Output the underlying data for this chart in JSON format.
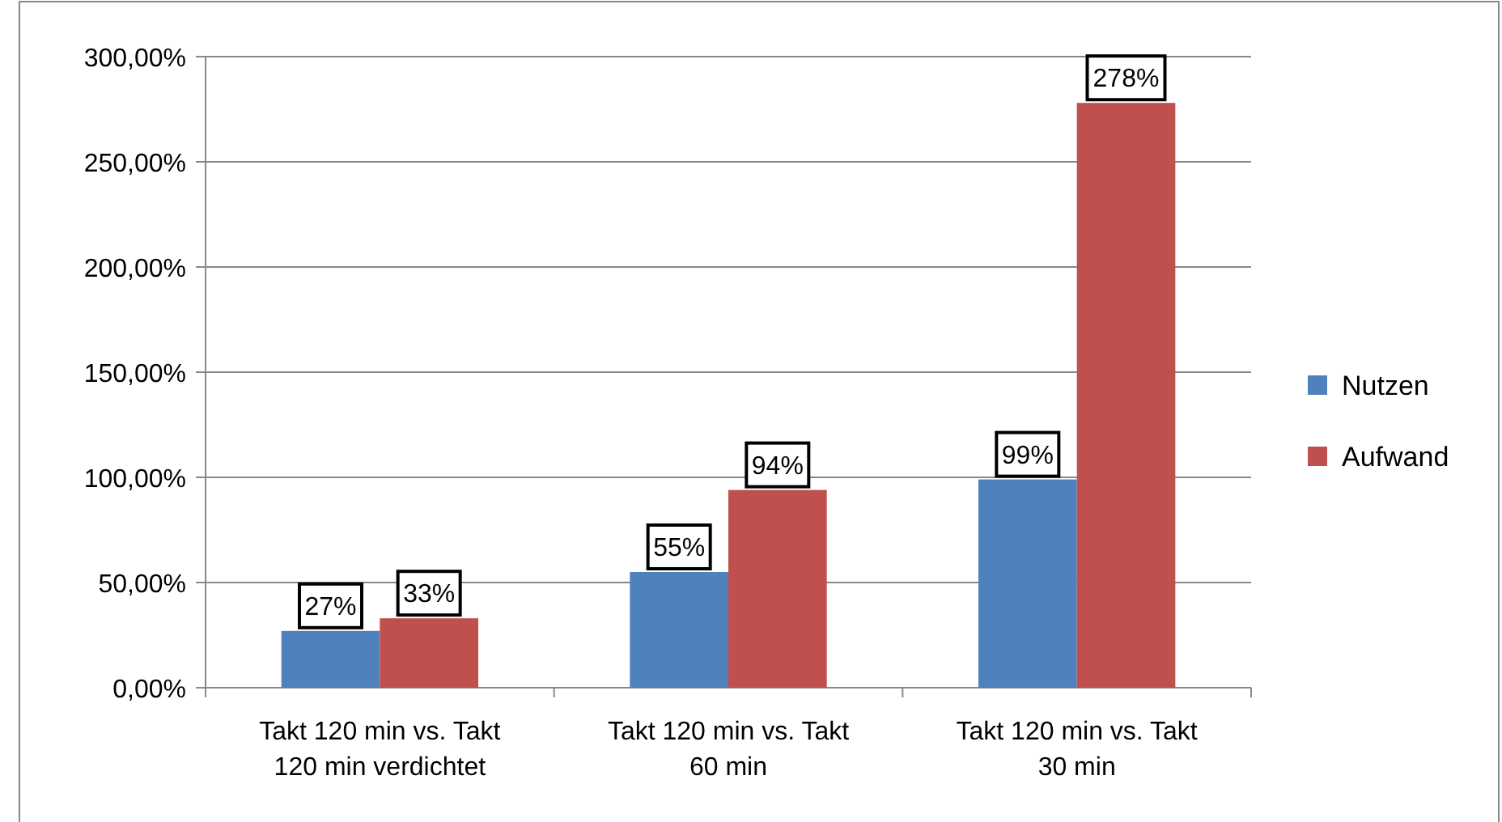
{
  "chart_data": {
    "type": "bar",
    "categories": [
      "Takt 120 min vs. Takt 120 min verdichtet",
      "Takt 120 min vs. Takt 60 min",
      "Takt 120 min vs. Takt 30 min"
    ],
    "series": [
      {
        "name": "Nutzen",
        "color": "#4f81bd",
        "values": [
          27,
          55,
          99
        ],
        "value_labels": [
          "27%",
          "55%",
          "99%"
        ]
      },
      {
        "name": "Aufwand",
        "color": "#c0504d",
        "values": [
          33,
          94,
          278
        ],
        "value_labels": [
          "33%",
          "94%",
          "278%"
        ]
      }
    ],
    "ylim": [
      0,
      300
    ],
    "yticks": [
      {
        "value": 0,
        "label": "0,00%"
      },
      {
        "value": 50,
        "label": "50,00%"
      },
      {
        "value": 100,
        "label": "100,00%"
      },
      {
        "value": 150,
        "label": "150,00%"
      },
      {
        "value": 200,
        "label": "200,00%"
      },
      {
        "value": 250,
        "label": "250,00%"
      },
      {
        "value": 300,
        "label": "300,00%"
      }
    ],
    "grid": "y",
    "legend": "right"
  }
}
